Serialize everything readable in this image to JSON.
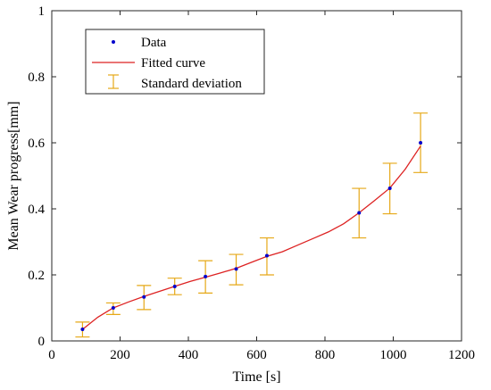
{
  "chart_data": {
    "type": "scatter",
    "xlabel": "Time [s]",
    "ylabel": "Mean Wear progress[mm]",
    "xlim": [
      0,
      1200
    ],
    "ylim": [
      0,
      1
    ],
    "xticks": [
      0,
      200,
      400,
      600,
      800,
      1000,
      1200
    ],
    "yticks": [
      0,
      0.2,
      0.4,
      0.6,
      0.8,
      1
    ],
    "xtick_labels": [
      "0",
      "200",
      "400",
      "600",
      "800",
      "1000",
      "1200"
    ],
    "ytick_labels": [
      "0",
      "0.2",
      "0.4",
      "0.6",
      "0.8",
      "1"
    ],
    "grid": false,
    "legend_position": "top-left",
    "legend": [
      "Data",
      "Fitted curve",
      "Standard deviation"
    ],
    "series": [
      {
        "name": "Data",
        "color": "#0000cc",
        "x": [
          90,
          180,
          270,
          360,
          450,
          540,
          630,
          900,
          990,
          1080
        ],
        "y": [
          0.035,
          0.1,
          0.133,
          0.165,
          0.195,
          0.218,
          0.258,
          0.388,
          0.462,
          0.6
        ]
      },
      {
        "name": "Fitted curve",
        "color": "#dd2222",
        "x": [
          90,
          135,
          180,
          225,
          270,
          315,
          360,
          405,
          450,
          495,
          540,
          585,
          630,
          675,
          720,
          765,
          810,
          855,
          900,
          945,
          990,
          1035,
          1080
        ],
        "y": [
          0.035,
          0.072,
          0.1,
          0.118,
          0.135,
          0.15,
          0.165,
          0.18,
          0.193,
          0.206,
          0.22,
          0.238,
          0.256,
          0.27,
          0.29,
          0.31,
          0.33,
          0.355,
          0.388,
          0.425,
          0.463,
          0.52,
          0.59
        ]
      },
      {
        "name": "Standard deviation",
        "color": "#e6a817",
        "x": [
          90,
          180,
          270,
          360,
          450,
          540,
          630,
          900,
          990,
          1080
        ],
        "lower": [
          0.012,
          0.08,
          0.095,
          0.14,
          0.145,
          0.17,
          0.2,
          0.312,
          0.385,
          0.51
        ],
        "upper": [
          0.057,
          0.115,
          0.168,
          0.19,
          0.243,
          0.262,
          0.312,
          0.462,
          0.538,
          0.69
        ]
      }
    ]
  }
}
